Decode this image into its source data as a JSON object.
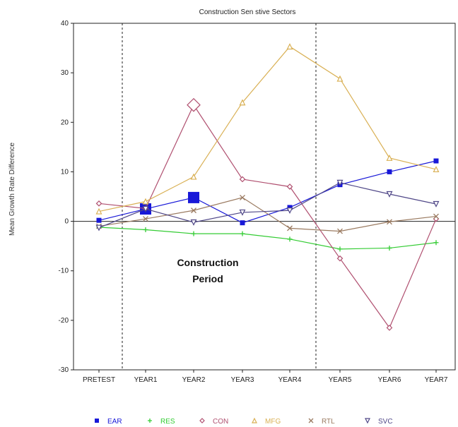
{
  "chart_data": {
    "type": "line",
    "title": "Construction Sen stive Sectors",
    "ylabel": "Mean Growth Rate Difference",
    "xlabel": "",
    "categories": [
      "PRETEST",
      "YEAR1",
      "YEAR2",
      "YEAR3",
      "YEAR4",
      "YEAR5",
      "YEAR6",
      "YEAR7"
    ],
    "ylim": [
      -30,
      40
    ],
    "yticks": [
      -30,
      -20,
      -10,
      0,
      10,
      20,
      30,
      40
    ],
    "annotation": {
      "line1": "Construction",
      "line2": "Period"
    },
    "construction_period_bounds": [
      "PRETEST/YEAR1",
      "YEAR4/YEAR5"
    ],
    "series": [
      {
        "name": "EAR",
        "color": "#1818d8",
        "marker": "square",
        "values": [
          0.2,
          2.5,
          4.8,
          -0.3,
          2.8,
          7.4,
          10.0,
          12.2
        ]
      },
      {
        "name": "RES",
        "color": "#33cc33",
        "marker": "plus",
        "values": [
          -1.2,
          -1.7,
          -2.5,
          -2.5,
          -3.6,
          -5.6,
          -5.4,
          -4.3
        ]
      },
      {
        "name": "CON",
        "color": "#b05070",
        "marker": "diamond",
        "values": [
          3.6,
          2.6,
          23.5,
          8.5,
          7.0,
          -7.5,
          -21.5,
          0.5
        ]
      },
      {
        "name": "MFG",
        "color": "#d9b054",
        "marker": "triangle-up",
        "values": [
          2.0,
          4.0,
          9.0,
          24.0,
          35.3,
          28.8,
          12.8,
          10.5
        ]
      },
      {
        "name": "RTL",
        "color": "#9a7a60",
        "marker": "x",
        "values": [
          -1.0,
          0.5,
          2.2,
          4.8,
          -1.4,
          -2.0,
          -0.1,
          1.0
        ]
      },
      {
        "name": "SVC",
        "color": "#504888",
        "marker": "triangle-down",
        "values": [
          -1.3,
          2.5,
          -0.2,
          1.8,
          2.2,
          7.8,
          5.5,
          3.5
        ]
      }
    ]
  }
}
